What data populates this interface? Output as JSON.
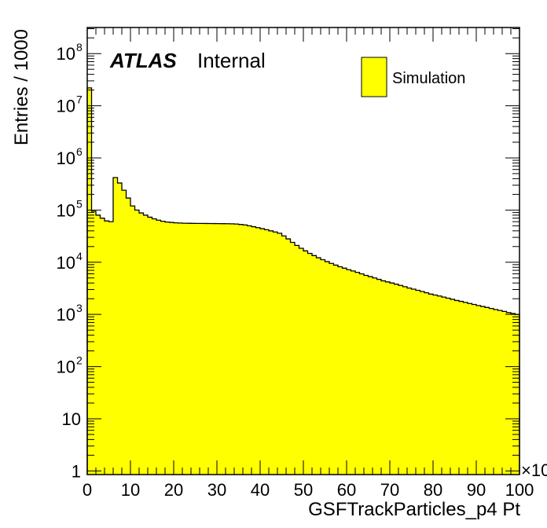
{
  "chart_data": {
    "type": "bar",
    "xlabel": "GSFTrackParticles_p4 Pt",
    "ylabel": "Entries / 1000",
    "x_multiplier_label": "×10",
    "xlim": [
      0,
      100
    ],
    "ylim_log10": [
      -0.07,
      8.5
    ],
    "log_y": true,
    "bin_width": 1,
    "fill_color": "#ffff00",
    "line_color": "#000000",
    "atlas_label": "ATLAS",
    "atlas_status": "Internal",
    "legend": {
      "position": "top-right",
      "entries": [
        "Simulation"
      ]
    },
    "x_ticks": [
      "0",
      "10",
      "20",
      "30",
      "40",
      "50",
      "60",
      "70",
      "80",
      "90",
      "100"
    ],
    "y_ticks": [
      {
        "base": "1",
        "exp": ""
      },
      {
        "base": "10",
        "exp": ""
      },
      {
        "base": "10",
        "exp": "2"
      },
      {
        "base": "10",
        "exp": "3"
      },
      {
        "base": "10",
        "exp": "4"
      },
      {
        "base": "10",
        "exp": "5"
      },
      {
        "base": "10",
        "exp": "6"
      },
      {
        "base": "10",
        "exp": "7"
      },
      {
        "base": "10",
        "exp": "8"
      }
    ],
    "values": [
      22000000.0,
      95000,
      80000,
      70000,
      62000,
      60000,
      420000,
      330000,
      240000,
      170000,
      120000,
      100000,
      88000,
      80000,
      73000,
      68000,
      64000,
      61000,
      59000,
      58000,
      57000,
      56500,
      56000,
      55800,
      55600,
      55500,
      55400,
      55300,
      55200,
      55100,
      55000,
      54900,
      54800,
      54500,
      54000,
      53000,
      52000,
      50000,
      48000,
      46000,
      44000,
      42000,
      40000,
      38000,
      36000,
      32000,
      28000,
      24000,
      21000,
      18500,
      16500,
      14800,
      13400,
      12200,
      11200,
      10300,
      9500,
      8800,
      8200,
      7700,
      7200,
      6800,
      6400,
      6000,
      5600,
      5300,
      5000,
      4700,
      4400,
      4200,
      4000,
      3800,
      3600,
      3400,
      3200,
      3050,
      2900,
      2750,
      2600,
      2450,
      2350,
      2250,
      2150,
      2050,
      1950,
      1850,
      1780,
      1700,
      1620,
      1550,
      1480,
      1420,
      1360,
      1300,
      1240,
      1190,
      1140,
      1080,
      1040,
      1000
    ]
  }
}
